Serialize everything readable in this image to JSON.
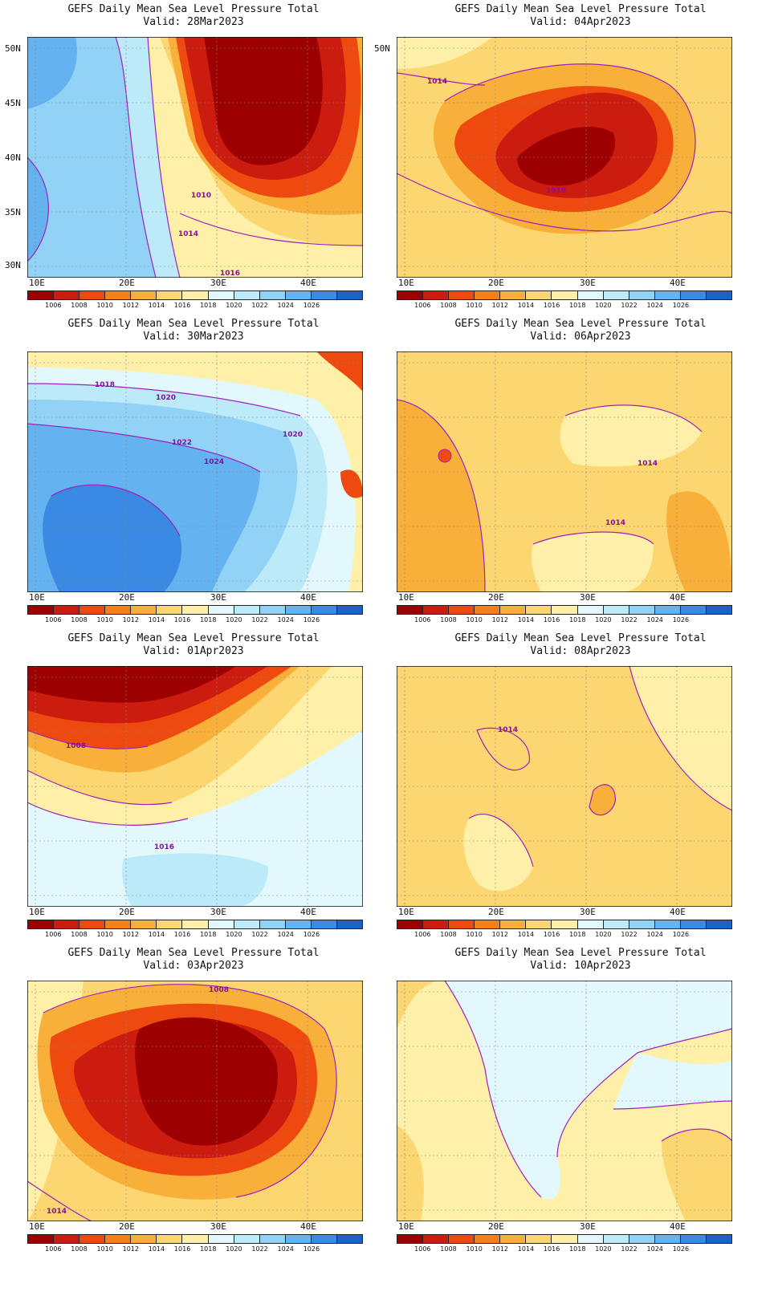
{
  "panels": [
    {
      "id": "p1",
      "title": "GEFS Daily Mean Sea Level Pressure Total",
      "valid": "Valid: 28Mar2023",
      "contours": [
        "1014",
        "1016",
        "1010"
      ]
    },
    {
      "id": "p2",
      "title": "GEFS Daily Mean Sea Level Pressure Total",
      "valid": "Valid: 04Apr2023",
      "contours": [
        "1014",
        "1010"
      ]
    },
    {
      "id": "p3",
      "title": "GEFS Daily Mean Sea Level Pressure Total",
      "valid": "Valid: 30Mar2023",
      "contours": [
        "1018",
        "1020",
        "1022",
        "1020",
        "1024"
      ]
    },
    {
      "id": "p4",
      "title": "GEFS Daily Mean Sea Level Pressure Total",
      "valid": "Valid: 06Apr2023",
      "contours": [
        "1014",
        "1014"
      ]
    },
    {
      "id": "p5",
      "title": "GEFS Daily Mean Sea Level Pressure Total",
      "valid": "Valid: 01Apr2023",
      "contours": [
        "1016",
        "1008"
      ]
    },
    {
      "id": "p6",
      "title": "GEFS Daily Mean Sea Level Pressure Total",
      "valid": "Valid: 08Apr2023",
      "contours": [
        "1014"
      ]
    },
    {
      "id": "p7",
      "title": "GEFS Daily Mean Sea Level Pressure Total",
      "valid": "Valid: 03Apr2023",
      "contours": [
        "1008",
        "1014"
      ]
    },
    {
      "id": "p8",
      "title": "GEFS Daily Mean Sea Level Pressure Total",
      "valid": "Valid: 10Apr2023",
      "contours": []
    }
  ],
  "axes": {
    "lat_labels": [
      "50N",
      "45N",
      "40N",
      "35N",
      "30N"
    ],
    "lon_labels": [
      "10E",
      "20E",
      "30E",
      "40E"
    ]
  },
  "colorbar": {
    "colors": [
      "#9c0000",
      "#cc1b0f",
      "#ee4a10",
      "#f77f18",
      "#f9b03a",
      "#fcd671",
      "#fef0a8",
      "#e2f8fd",
      "#bdeaf9",
      "#92d2f6",
      "#64b2ef",
      "#3a89e2",
      "#1e62c8"
    ],
    "labels": [
      "1006",
      "1008",
      "1010",
      "1012",
      "1014",
      "1016",
      "1018",
      "1020",
      "1022",
      "1024",
      "1026"
    ]
  }
}
